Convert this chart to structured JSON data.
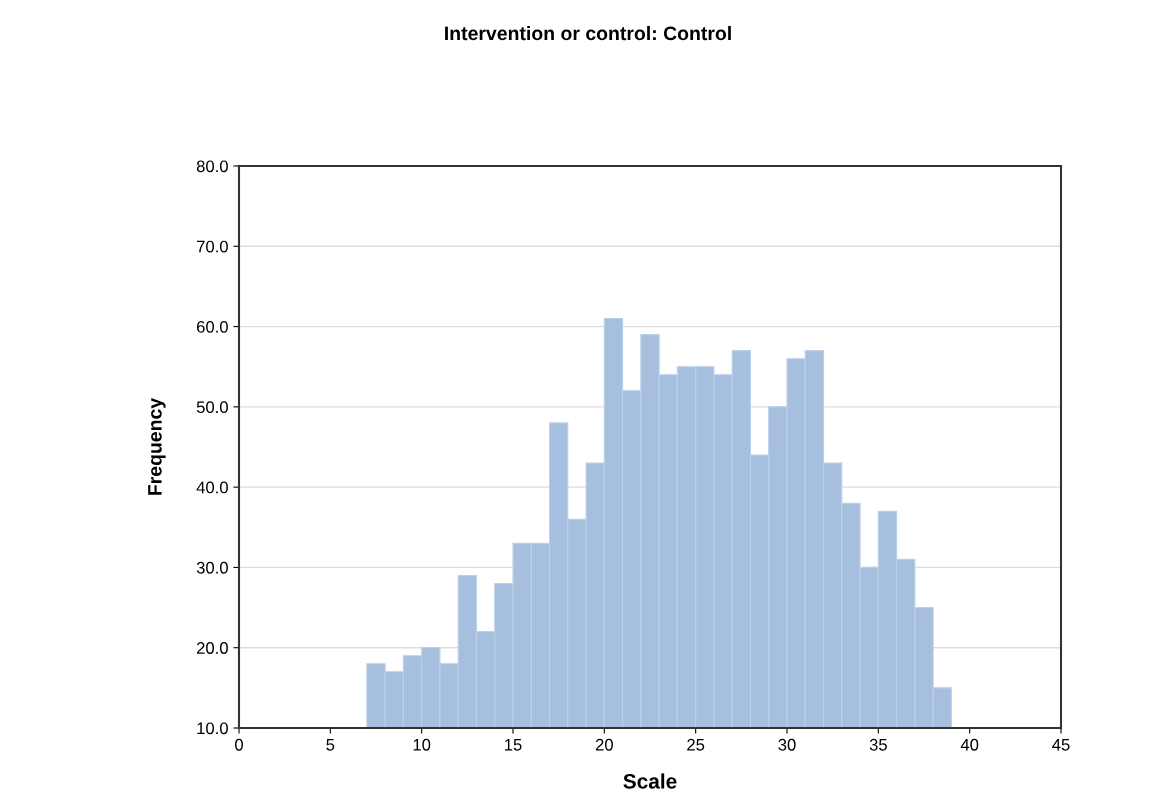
{
  "chart_data": {
    "type": "histogram",
    "title": "Intervention or control: Control",
    "xlabel": "Scale",
    "ylabel": "Frequency",
    "bins": [
      7,
      8,
      9,
      10,
      11,
      12,
      13,
      14,
      15,
      16,
      17,
      18,
      19,
      20,
      21,
      22,
      23,
      24,
      25,
      26,
      27,
      28,
      29,
      30,
      31,
      32,
      33,
      34,
      35,
      36,
      37,
      38,
      39
    ],
    "values": [
      18,
      17,
      19,
      20,
      18,
      29,
      22,
      28,
      33,
      33,
      48,
      36,
      43,
      61,
      52,
      59,
      54,
      55,
      55,
      54,
      57,
      44,
      50,
      56,
      57,
      43,
      38,
      30,
      37,
      31,
      25,
      15
    ],
    "color": "#a7bfde",
    "xlim": [
      0,
      45
    ],
    "xticks": [
      0,
      5,
      10,
      15,
      20,
      25,
      30,
      35,
      40,
      45
    ],
    "ylim": [
      10,
      80
    ],
    "yticks": [
      {
        "value": 10,
        "label": "10.0"
      },
      {
        "value": 20,
        "label": "20.0"
      },
      {
        "value": 30,
        "label": "30.0"
      },
      {
        "value": 40,
        "label": "40.0"
      },
      {
        "value": 50,
        "label": "50.0"
      },
      {
        "value": 60,
        "label": "60.0"
      },
      {
        "value": 70,
        "label": "70.0"
      },
      {
        "value": 80,
        "label": "80.0"
      }
    ],
    "grid": "y"
  }
}
